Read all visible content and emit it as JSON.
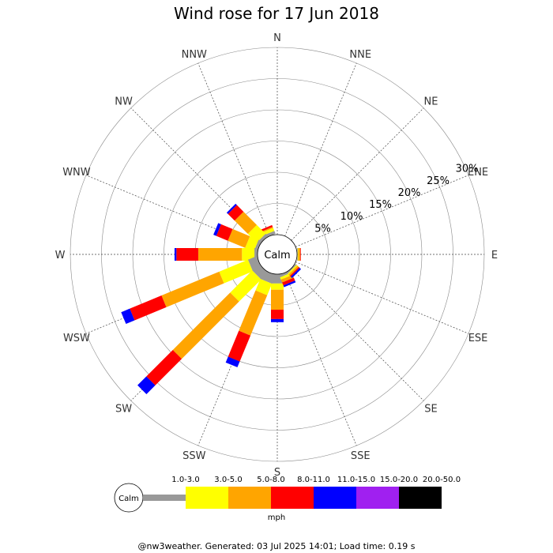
{
  "chart_data": {
    "type": "windrose",
    "title": "Wind rose for 17 Jun 2018",
    "calm_label": "Calm",
    "directions": [
      "N",
      "NNE",
      "NE",
      "ENE",
      "E",
      "ESE",
      "SE",
      "SSE",
      "S",
      "SSW",
      "SW",
      "WSW",
      "W",
      "WNW",
      "NW",
      "NNW"
    ],
    "radial_ticks": [
      "5%",
      "10%",
      "15%",
      "20%",
      "25%",
      "30%"
    ],
    "radial_values": [
      5,
      10,
      15,
      20,
      25,
      30
    ],
    "rmax": 30,
    "bins": [
      "1.0-3.0",
      "3.0-5.0",
      "5.0-8.0",
      "8.0-11.0",
      "11.0-15.0",
      "15.0-20.0",
      "20.0-50.0"
    ],
    "colors": [
      "#999999",
      "#ffff00",
      "#ffa500",
      "#ff0000",
      "#0000ff",
      "#a020f0",
      "#000000"
    ],
    "unit": "mph",
    "series": [
      {
        "dir": "NNW",
        "values": [
          0.5,
          0.5,
          0.2,
          0.3,
          0,
          0,
          0
        ]
      },
      {
        "dir": "NW",
        "values": [
          0.5,
          2.0,
          3.0,
          1.5,
          0.3,
          0,
          0
        ]
      },
      {
        "dir": "WNW",
        "values": [
          0.5,
          1.5,
          3.0,
          2.0,
          0.5,
          0,
          0
        ]
      },
      {
        "dir": "W",
        "values": [
          0.5,
          2.0,
          7.0,
          3.5,
          0.3,
          0,
          0
        ]
      },
      {
        "dir": "WSW",
        "values": [
          1.5,
          5.0,
          10.0,
          5.5,
          1.5,
          0,
          0
        ]
      },
      {
        "dir": "SW",
        "values": [
          1.5,
          5.0,
          13.0,
          6.0,
          2.0,
          0,
          0
        ]
      },
      {
        "dir": "SSW",
        "values": [
          1.5,
          2.0,
          7.0,
          4.5,
          1.0,
          0,
          0
        ]
      },
      {
        "dir": "S",
        "values": [
          1.5,
          1.0,
          3.2,
          1.5,
          0.5,
          0,
          0
        ]
      },
      {
        "dir": "SSE",
        "values": [
          0.4,
          0.4,
          0.5,
          0.5,
          0.3,
          0,
          0
        ]
      },
      {
        "dir": "SE",
        "values": [
          0.2,
          0.2,
          0.3,
          0.2,
          0.3,
          0,
          0
        ]
      },
      {
        "dir": "E",
        "values": [
          0.1,
          0.1,
          0.3,
          0.1,
          0,
          0,
          0
        ]
      }
    ],
    "footer": "@nw3weather. Generated: 03 Jul 2025 14:01; Load time: 0.19 s"
  }
}
